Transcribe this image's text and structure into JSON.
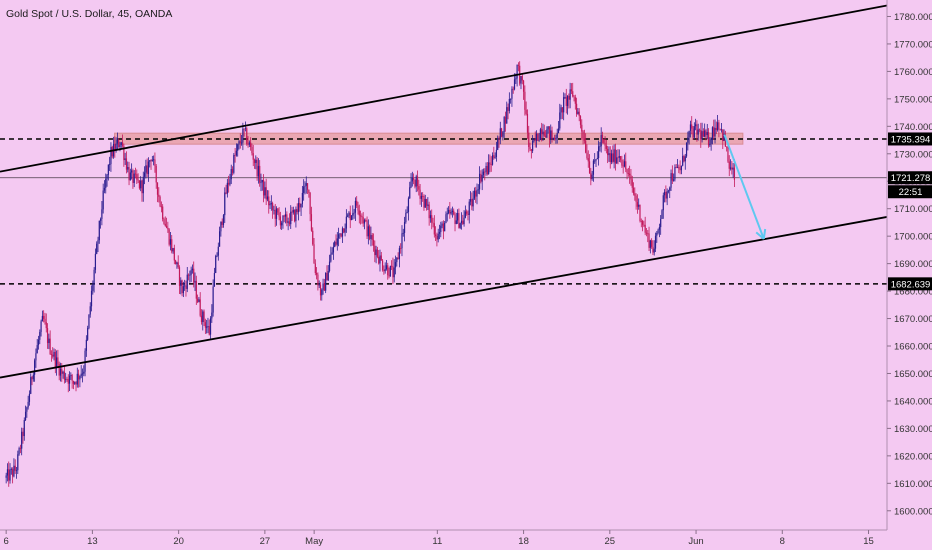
{
  "header": {
    "title": "Gold Spot / U.S. Dollar, 45, OANDA"
  },
  "colors": {
    "background": "#f4c9f2",
    "candle_up": "#2b1d8f",
    "candle_down": "#c2185b",
    "trendline": "#000000",
    "resistance_zone": "#e8a0a8",
    "forecast_arrow": "#5ec8f0",
    "price_badge": "#000000"
  },
  "chart_data": {
    "type": "candlestick",
    "title": "Gold Spot / U.S. Dollar, 45, OANDA",
    "instrument": "XAUUSD",
    "timeframe": "45",
    "source": "OANDA",
    "x_tick_labels": [
      "6",
      "13",
      "20",
      "27",
      "May",
      "11",
      "18",
      "25",
      "Jun",
      "8",
      "15"
    ],
    "x_ticks": [
      {
        "label": "6",
        "day": 0
      },
      {
        "label": "13",
        "day": 7
      },
      {
        "label": "20",
        "day": 14
      },
      {
        "label": "27",
        "day": 21
      },
      {
        "label": "May",
        "day": 25
      },
      {
        "label": "11",
        "day": 35
      },
      {
        "label": "18",
        "day": 42
      },
      {
        "label": "25",
        "day": 49
      },
      {
        "label": "Jun",
        "day": 56
      },
      {
        "label": "8",
        "day": 63
      },
      {
        "label": "15",
        "day": 70
      }
    ],
    "y_tick_labels": [
      "1600.000",
      "1610.000",
      "1620.000",
      "1630.000",
      "1640.000",
      "1650.000",
      "1660.000",
      "1670.000",
      "1680.000",
      "1690.000",
      "1700.000",
      "1710.000",
      "1720.000",
      "1730.000",
      "1740.000",
      "1750.000",
      "1760.000",
      "1770.000",
      "1780.000"
    ],
    "y_ticks": [
      1600,
      1610,
      1620,
      1630,
      1640,
      1650,
      1660,
      1670,
      1680,
      1690,
      1700,
      1710,
      1720,
      1730,
      1740,
      1750,
      1760,
      1770,
      1780
    ],
    "ylim": [
      1593,
      1786
    ],
    "xlim": [
      -0.5,
      71.5
    ],
    "price_path": [
      [
        0.0,
        1612
      ],
      [
        0.8,
        1615
      ],
      [
        1.5,
        1632
      ],
      [
        2.3,
        1655
      ],
      [
        3.0,
        1670
      ],
      [
        3.5,
        1660
      ],
      [
        4.5,
        1650
      ],
      [
        5.5,
        1647
      ],
      [
        6.3,
        1652
      ],
      [
        7.0,
        1682
      ],
      [
        7.8,
        1712
      ],
      [
        8.5,
        1730
      ],
      [
        9.3,
        1735
      ],
      [
        10.0,
        1722
      ],
      [
        11.0,
        1718
      ],
      [
        11.8,
        1730
      ],
      [
        12.5,
        1712
      ],
      [
        13.5,
        1695
      ],
      [
        14.3,
        1680
      ],
      [
        15.0,
        1688
      ],
      [
        15.8,
        1672
      ],
      [
        16.5,
        1665
      ],
      [
        17.0,
        1690
      ],
      [
        17.8,
        1715
      ],
      [
        18.5,
        1728
      ],
      [
        19.3,
        1738
      ],
      [
        20.0,
        1730
      ],
      [
        20.8,
        1718
      ],
      [
        21.5,
        1710
      ],
      [
        22.5,
        1705
      ],
      [
        23.5,
        1708
      ],
      [
        24.5,
        1720
      ],
      [
        25.0,
        1690
      ],
      [
        25.6,
        1678
      ],
      [
        26.5,
        1695
      ],
      [
        27.5,
        1705
      ],
      [
        28.5,
        1712
      ],
      [
        29.5,
        1700
      ],
      [
        30.5,
        1690
      ],
      [
        31.5,
        1686
      ],
      [
        32.5,
        1708
      ],
      [
        33.0,
        1722
      ],
      [
        34.0,
        1712
      ],
      [
        35.0,
        1700
      ],
      [
        36.0,
        1708
      ],
      [
        37.0,
        1705
      ],
      [
        37.8,
        1712
      ],
      [
        38.5,
        1722
      ],
      [
        39.2,
        1725
      ],
      [
        40.0,
        1735
      ],
      [
        40.8,
        1748
      ],
      [
        41.5,
        1762
      ],
      [
        42.0,
        1752
      ],
      [
        42.5,
        1730
      ],
      [
        43.5,
        1740
      ],
      [
        44.5,
        1735
      ],
      [
        45.2,
        1748
      ],
      [
        46.0,
        1752
      ],
      [
        46.8,
        1738
      ],
      [
        47.5,
        1722
      ],
      [
        48.3,
        1735
      ],
      [
        49.0,
        1728
      ],
      [
        49.8,
        1730
      ],
      [
        50.5,
        1722
      ],
      [
        51.2,
        1712
      ],
      [
        52.0,
        1700
      ],
      [
        52.6,
        1695
      ],
      [
        53.3,
        1712
      ],
      [
        54.0,
        1722
      ],
      [
        54.8,
        1725
      ],
      [
        55.5,
        1738
      ],
      [
        56.2,
        1738
      ],
      [
        57.0,
        1735
      ],
      [
        57.8,
        1742
      ],
      [
        58.3,
        1735
      ],
      [
        58.7,
        1725
      ],
      [
        59.2,
        1721
      ]
    ],
    "resistance_zone": {
      "from_day": 8.8,
      "to_day": 59.8,
      "low": 1733.5,
      "high": 1737.5
    },
    "horizontal_lines": [
      {
        "label": "1735.394",
        "value": 1735.394,
        "style": "dashed"
      },
      {
        "label": "1721.278",
        "value": 1721.278,
        "style": "solid"
      },
      {
        "label": "1682.639",
        "value": 1682.639,
        "style": "dashed"
      }
    ],
    "trendlines": [
      {
        "name": "upper-channel",
        "from": [
          -0.5,
          1723.5
        ],
        "to": [
          71.5,
          1784.0
        ]
      },
      {
        "name": "lower-channel",
        "from": [
          -0.5,
          1648.5
        ],
        "to": [
          71.5,
          1707.0
        ]
      }
    ],
    "forecast_arrow": {
      "from": [
        58.3,
        1737
      ],
      "to": [
        61.5,
        1699
      ]
    },
    "last_price": {
      "value": "1721.278",
      "countdown": "22:51"
    },
    "grid": false,
    "legend": "none"
  }
}
